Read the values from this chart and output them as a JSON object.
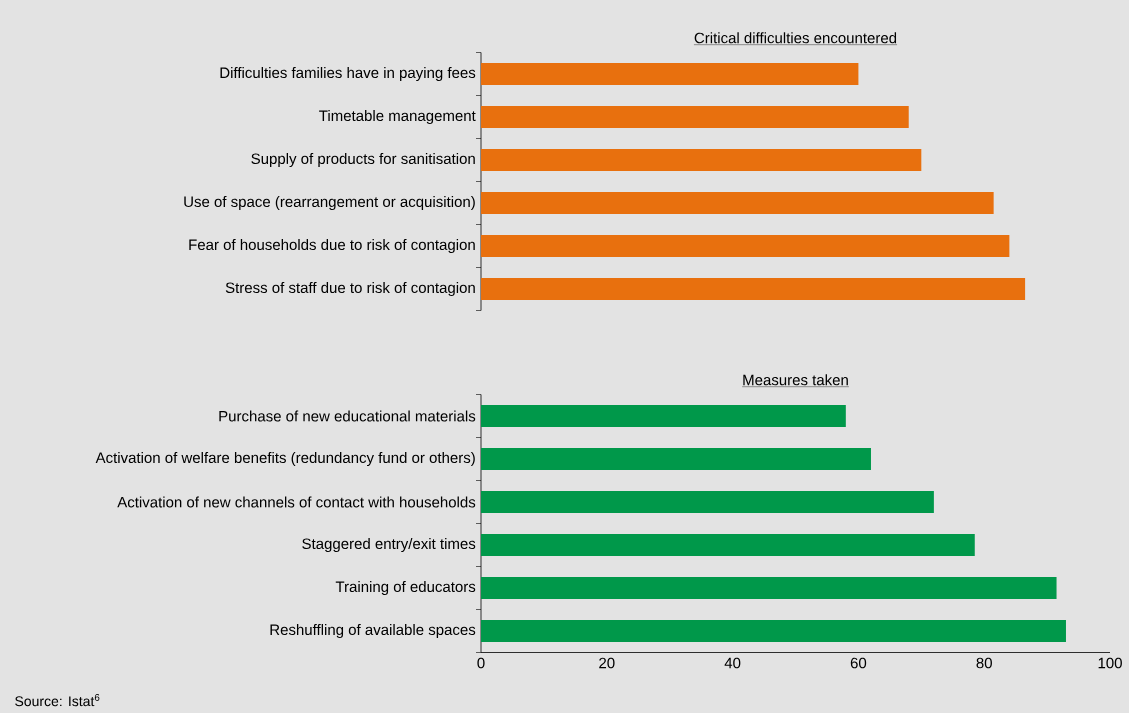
{
  "chart_data": [
    {
      "type": "bar",
      "orientation": "horizontal",
      "title": "Critical difficulties encountered",
      "categories": [
        "Difficulties families have in paying fees",
        "Timetable management",
        "Supply of products for sanitisation",
        "Use of space (rearrangement or acquisition)",
        "Fear of households due to risk of contagion",
        "Stress of staff due to risk of contagion"
      ],
      "values": [
        60,
        68,
        70,
        81.5,
        84,
        86.5
      ],
      "color": "#e8700e",
      "xlim": [
        0,
        100
      ],
      "xticks": [
        0,
        20,
        40,
        60,
        80,
        100
      ],
      "tick_labels": "y"
    },
    {
      "type": "bar",
      "orientation": "horizontal",
      "title": "Measures taken",
      "categories": [
        "Purchase of new educational materials",
        "Activation of welfare benefits (redundancy fund or others)",
        "Activation of new channels of contact with households",
        "Staggered entry/exit times",
        "Training of educators",
        "Reshuffling of available spaces"
      ],
      "values": [
        58,
        62,
        72,
        78.5,
        91.5,
        93
      ],
      "color": "#00984a",
      "xlim": [
        0,
        100
      ],
      "xticks": [
        0,
        20,
        40,
        60,
        80,
        100
      ],
      "annotations": [
        "Source: Istat$^{6}$"
      ]
    }
  ]
}
